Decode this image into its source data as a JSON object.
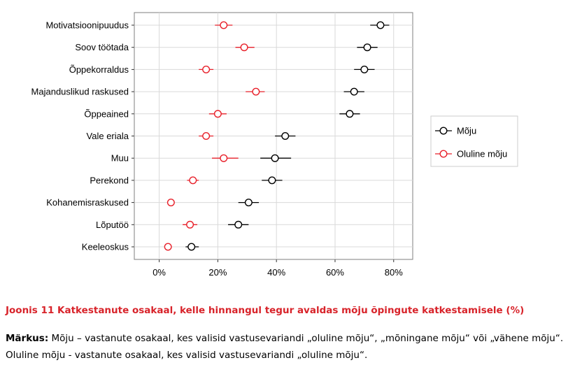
{
  "chart_data": {
    "type": "scatter",
    "subtype": "dot-plot with error bars",
    "categories": [
      "Motivatsioonipuudus",
      "Soov töötada",
      "Õppekorraldus",
      "Majanduslikud raskused",
      "Õppeained",
      "Vale eriala",
      "Muu",
      "Perekond",
      "Kohanemisraskused",
      "Lõputöö",
      "Keeleoskus"
    ],
    "xlim": [
      -8.5,
      86.5
    ],
    "xticks": [
      0,
      20,
      40,
      60,
      80
    ],
    "xtick_labels": [
      "0%",
      "20%",
      "40%",
      "60%",
      "80%"
    ],
    "grid": true,
    "legend_position": "right",
    "series": [
      {
        "name": "Mõju",
        "color": "#000000",
        "values": [
          75.5,
          71,
          70,
          66.5,
          65,
          43,
          39.5,
          38.5,
          30.5,
          27,
          11
        ],
        "lower": [
          72,
          67.5,
          66.5,
          63,
          61.5,
          39.5,
          34.5,
          35,
          27,
          23.5,
          9
        ],
        "upper": [
          78.5,
          74.5,
          73.5,
          70,
          68.5,
          46.5,
          45,
          42,
          34,
          30.5,
          13.5
        ]
      },
      {
        "name": "Oluline mõju",
        "color": "#e8202a",
        "values": [
          22,
          29,
          16,
          33,
          20,
          16,
          22,
          11.5,
          4,
          10.5,
          3
        ],
        "lower": [
          19,
          26,
          13.5,
          29.5,
          17,
          13.5,
          18,
          9.5,
          3,
          8,
          2
        ],
        "upper": [
          25,
          32.5,
          18.5,
          36,
          23,
          18.5,
          27,
          13.5,
          5,
          13,
          3.5
        ]
      }
    ]
  },
  "caption": {
    "title": "Joonis 11 Katkestanute osakaal, kelle hinnangul tegur avaldas mõju õpingute katkestamisele (%)",
    "note_label": "Märkus:",
    "note_text": " Mõju – vastanute osakaal, kes valisid vastusevariandi „oluline mõju“, „mõningane mõju“ või „vähene mõju“. Oluline mõju - vastanute osakaal, kes valisid vastusevariandi „oluline mõju“."
  }
}
